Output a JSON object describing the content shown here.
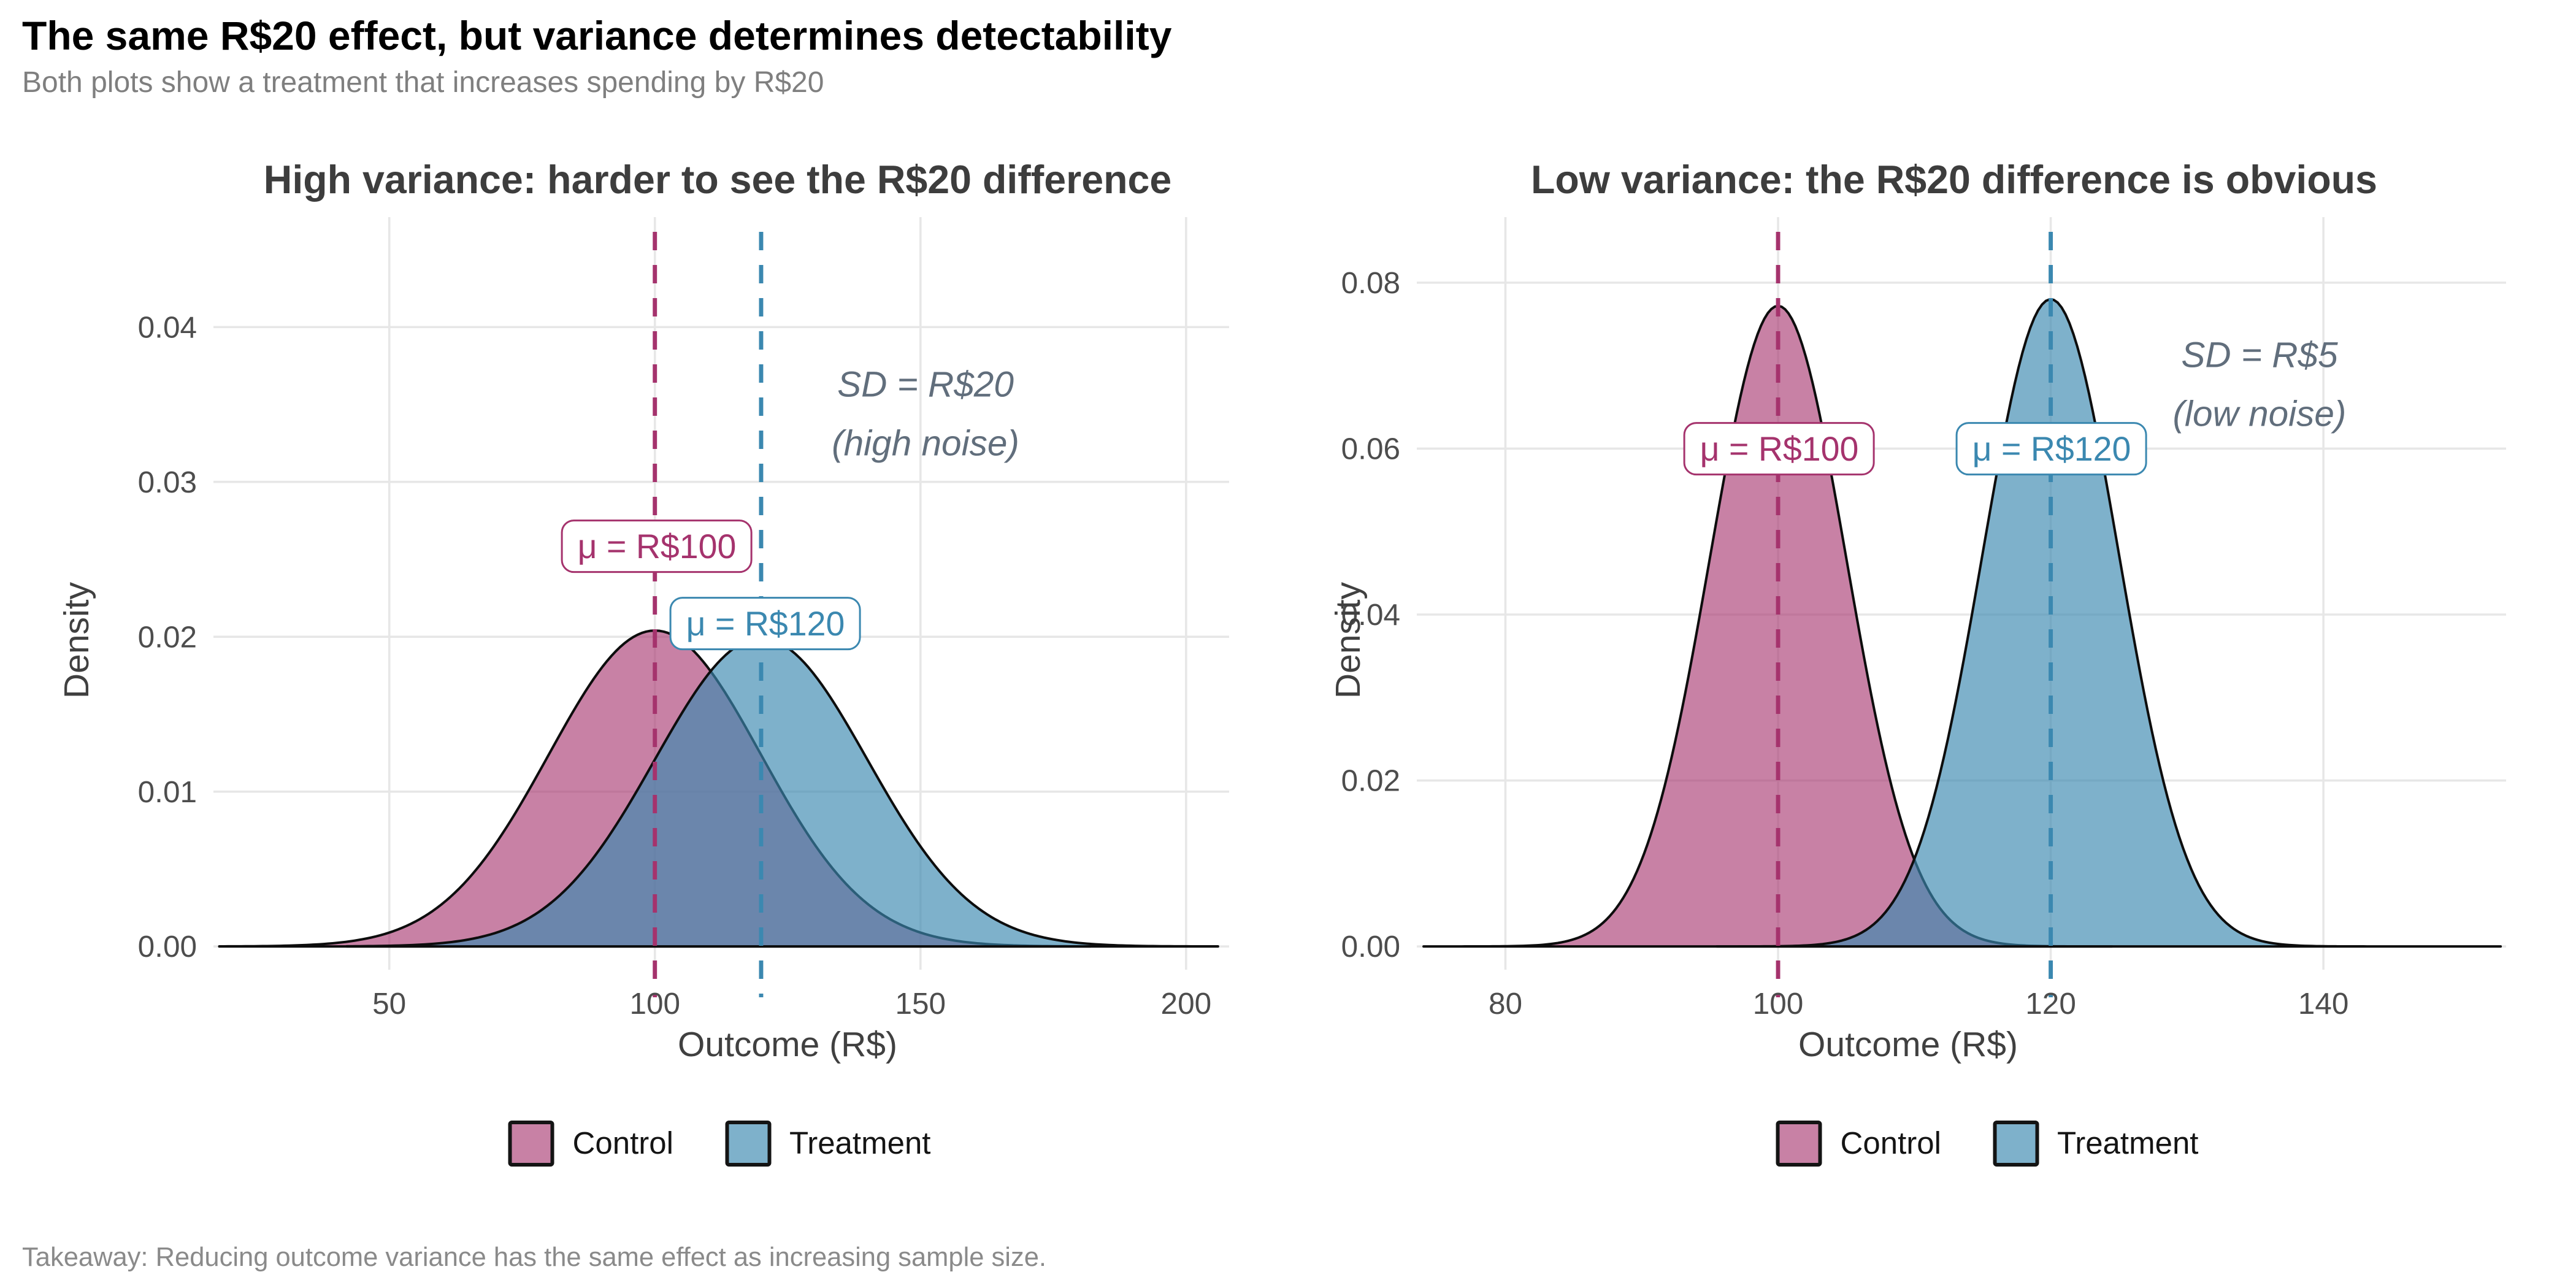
{
  "header": {
    "title": "The same R$20 effect, but variance determines detectability",
    "subtitle": "Both plots show a treatment that increases spending by R$20"
  },
  "footer": {
    "takeaway": "Takeaway: Reducing outcome variance has the same effect as increasing sample size."
  },
  "legend": {
    "control": "Control",
    "treatment": "Treatment"
  },
  "colors": {
    "control": "#A5336D",
    "treatment": "#3B88B0",
    "control_fill": "rgba(166,51,109,0.62)",
    "treatment_fill": "rgba(59,136,176,0.66)",
    "curve_stroke": "#0d0d0d",
    "grid": "#e7e7e7",
    "annotation_gray": "#616E7C",
    "title_black": "#000000",
    "subtitle_gray": "#7F7F7F",
    "panel_title_gray": "#3D3D3D",
    "tick_gray": "#4D4D4D",
    "axis_title_gray": "#404040",
    "footer_gray": "#8A8A8A"
  },
  "chart_data": [
    {
      "type": "area",
      "panel": "high-variance",
      "title": "High variance: harder to see the R$20 difference",
      "xlabel": "Outcome (R$)",
      "ylabel": "Density",
      "x_ticks": [
        50,
        100,
        150,
        200
      ],
      "x_tick_labels": [
        "50",
        "100",
        "150",
        "200"
      ],
      "y_ticks": [
        0,
        0.01,
        0.02,
        0.03,
        0.04
      ],
      "y_tick_labels": [
        "0.00",
        "0.01",
        "0.02",
        "0.03",
        "0.04"
      ],
      "x_range": [
        16.9,
        208.1
      ],
      "y_range": [
        -0.0015,
        0.0471
      ],
      "grid": true,
      "legend_position": "bottom",
      "series": [
        {
          "name": "Control",
          "distribution": "normal",
          "mean": 100,
          "sd": 20,
          "peak_density": 0.0204,
          "domain": [
            18,
            182
          ]
        },
        {
          "name": "Treatment",
          "distribution": "normal",
          "mean": 120,
          "sd": 20,
          "peak_density": 0.0199,
          "domain": [
            42,
            206
          ]
        }
      ],
      "vlines": [
        {
          "x": 100,
          "series": "Control",
          "style": "dashed"
        },
        {
          "x": 120,
          "series": "Treatment",
          "style": "dashed"
        }
      ],
      "annotations": {
        "sd_line1": "SD = R$20",
        "sd_line2": "(high noise)",
        "mu_control": "μ = R$100",
        "mu_treatment": "μ = R$120"
      }
    },
    {
      "type": "area",
      "panel": "low-variance",
      "title": "Low variance: the R$20 difference is obvious",
      "xlabel": "Outcome (R$)",
      "ylabel": "Density",
      "x_ticks": [
        80,
        100,
        120,
        140
      ],
      "x_tick_labels": [
        "80",
        "100",
        "120",
        "140"
      ],
      "y_ticks": [
        0,
        0.02,
        0.04,
        0.06,
        0.08
      ],
      "y_tick_labels": [
        "0.00",
        "0.02",
        "0.04",
        "0.06",
        "0.08"
      ],
      "x_range": [
        73.5,
        153.4
      ],
      "y_range": [
        -0.0028,
        0.0879
      ],
      "grid": true,
      "legend_position": "bottom",
      "series": [
        {
          "name": "Control",
          "distribution": "normal",
          "mean": 100,
          "sd": 5,
          "peak_density": 0.0772,
          "domain": [
            74,
            124.5
          ]
        },
        {
          "name": "Treatment",
          "distribution": "normal",
          "mean": 120,
          "sd": 5,
          "peak_density": 0.078,
          "domain": [
            95.5,
            153
          ]
        }
      ],
      "vlines": [
        {
          "x": 100,
          "series": "Control",
          "style": "dashed"
        },
        {
          "x": 120,
          "series": "Treatment",
          "style": "dashed"
        }
      ],
      "annotations": {
        "sd_line1": "SD = R$5",
        "sd_line2": "(low noise)",
        "mu_control": "μ = R$100",
        "mu_treatment": "μ = R$120"
      }
    }
  ]
}
